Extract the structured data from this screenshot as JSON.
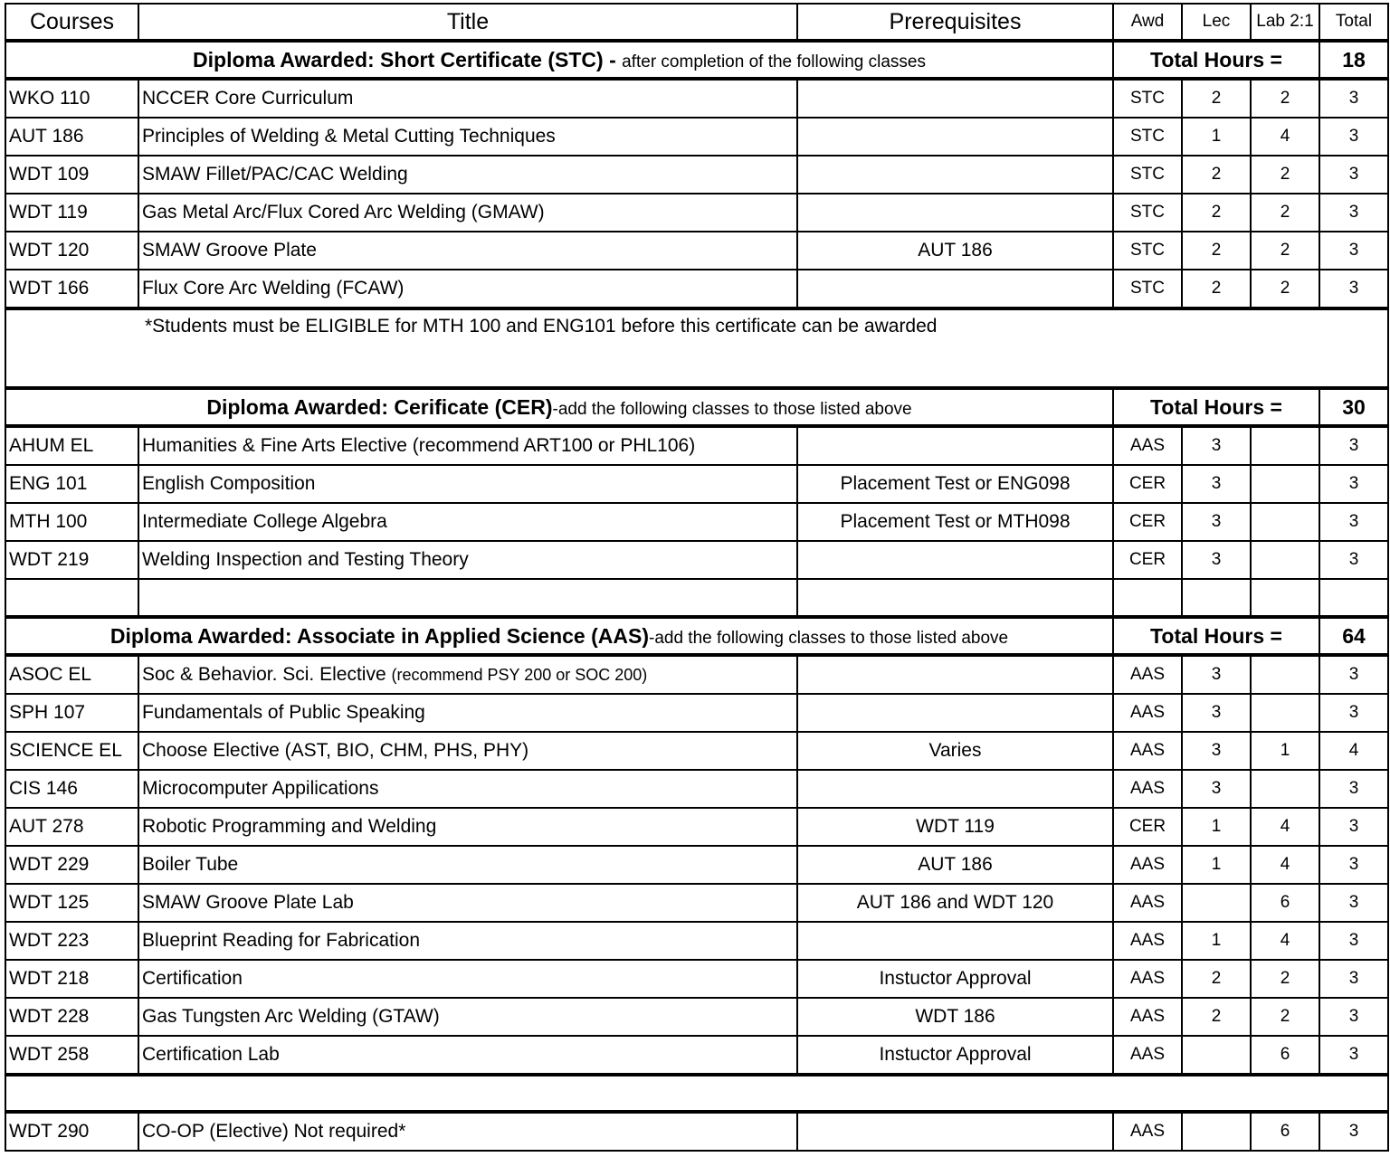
{
  "columns": [
    "Courses",
    "Title",
    "Prerequisites",
    "Awd",
    "Lec",
    "Lab 2:1",
    "Total"
  ],
  "sections": [
    {
      "heading": "Diploma Awarded: Short Certificate (STC) - ",
      "subheading": "after completion of the following classes",
      "total_label": "Total Hours =",
      "total": "18",
      "rows": [
        [
          "WKO 110",
          "NCCER Core Curriculum",
          "",
          "STC",
          "2",
          "2",
          "3"
        ],
        [
          "AUT 186",
          "Principles of Welding & Metal Cutting Techniques",
          "",
          "STC",
          "1",
          "4",
          "3"
        ],
        [
          "WDT 109",
          "SMAW Fillet/PAC/CAC Welding",
          "",
          "STC",
          "2",
          "2",
          "3"
        ],
        [
          "WDT 119",
          "Gas Metal Arc/Flux Cored Arc Welding (GMAW)",
          "",
          "STC",
          "2",
          "2",
          "3"
        ],
        [
          "WDT 120",
          "SMAW Groove Plate",
          "AUT 186",
          "STC",
          "2",
          "2",
          "3"
        ],
        [
          "WDT 166",
          "Flux Core Arc Welding (FCAW)",
          "",
          "STC",
          "2",
          "2",
          "3"
        ]
      ],
      "note": "*Students must be ELIGIBLE for MTH 100 and ENG101 before this certificate can be awarded"
    },
    {
      "heading": "Diploma Awarded: Cerificate (CER)",
      "subheading": "-add the following classes to those listed above",
      "total_label": "Total Hours =",
      "total": "30",
      "rows": [
        [
          "AHUM EL",
          "Humanities & Fine Arts Elective (recommend ART100 or PHL106)",
          "",
          "AAS",
          "3",
          "",
          "3"
        ],
        [
          "ENG 101",
          "English Composition",
          "Placement Test or ENG098",
          "CER",
          "3",
          "",
          "3"
        ],
        [
          "MTH 100",
          "Intermediate College Algebra",
          "Placement Test or MTH098",
          "CER",
          "3",
          "",
          "3"
        ],
        [
          "WDT 219",
          "Welding Inspection and Testing Theory",
          "",
          "CER",
          "3",
          "",
          "3"
        ]
      ],
      "blank_after": true
    },
    {
      "heading": "Diploma Awarded: Associate in Applied Science (AAS)",
      "subheading": "-add the following classes to those listed above",
      "total_label": "Total Hours =",
      "total": "64",
      "rows": [
        [
          "ASOC EL",
          "Soc & Behavior. Sci. Elective",
          "",
          "AAS",
          "3",
          "",
          "3"
        ],
        [
          "SPH 107",
          "Fundamentals of Public Speaking",
          "",
          "AAS",
          "3",
          "",
          "3"
        ],
        [
          "SCIENCE EL",
          "Choose Elective (AST, BIO, CHM, PHS, PHY)",
          "Varies",
          "AAS",
          "3",
          "1",
          "4"
        ],
        [
          "CIS 146",
          "Microcomputer Appilications",
          "",
          "AAS",
          "3",
          "",
          "3"
        ],
        [
          "AUT 278",
          "Robotic Programming and Welding",
          "WDT 119",
          "CER",
          "1",
          "4",
          "3"
        ],
        [
          "WDT 229",
          "Boiler Tube",
          "AUT 186",
          "AAS",
          "1",
          "4",
          "3"
        ],
        [
          "WDT 125",
          "SMAW Groove Plate Lab",
          "AUT 186 and WDT 120",
          "AAS",
          "",
          "6",
          "3"
        ],
        [
          "WDT 223",
          "Blueprint Reading for Fabrication",
          "",
          "AAS",
          "1",
          "4",
          "3"
        ],
        [
          "WDT 218",
          "Certification",
          "Instuctor Approval",
          "AAS",
          "2",
          "2",
          "3"
        ],
        [
          "WDT 228",
          "Gas Tungsten Arc Welding (GTAW)",
          "WDT 186",
          "AAS",
          "2",
          "2",
          "3"
        ],
        [
          "WDT 258",
          "Certification Lab",
          "Instuctor Approval",
          "AAS",
          "",
          "6",
          "3"
        ]
      ],
      "title_suffix": {
        "0": "(recommend PSY 200 or SOC 200)"
      }
    }
  ],
  "footer_row": [
    "WDT 290",
    "CO-OP (Elective) Not required*",
    "",
    "AAS",
    "",
    "6",
    "3"
  ]
}
